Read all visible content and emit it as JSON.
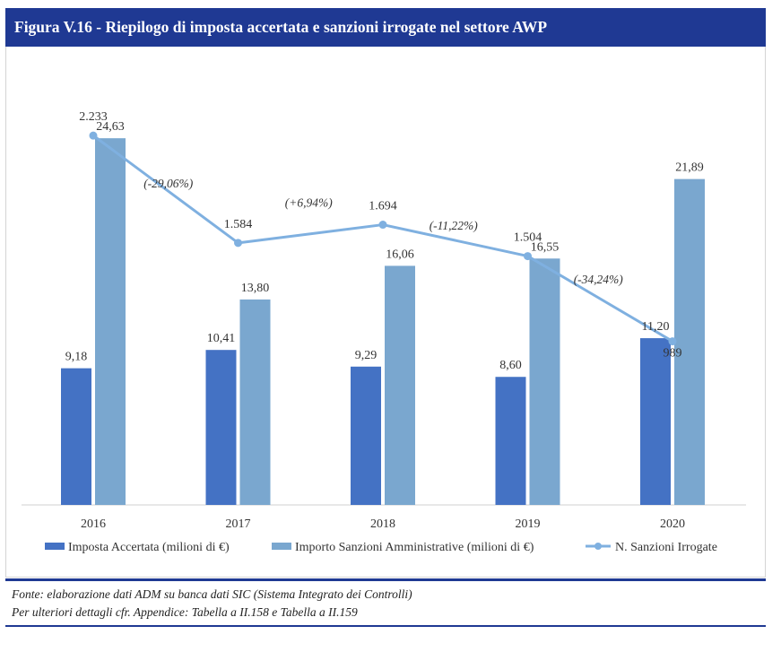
{
  "figure": {
    "title": "Figura V.16 - Riepilogo di imposta accertata e sanzioni irrogate nel settore AWP"
  },
  "colors": {
    "title_bg": "#1f3993",
    "imposta": "#4472c4",
    "importo": "#7aa7cf",
    "sanzioni": "#7fb0e0"
  },
  "chart_data": {
    "type": "bar",
    "categories": [
      "2016",
      "2017",
      "2018",
      "2019",
      "2020"
    ],
    "series": [
      {
        "name": "Imposta Accertata  (milioni di €)",
        "type": "bar",
        "values": [
          9.18,
          10.41,
          9.29,
          8.6,
          11.2
        ],
        "labels": [
          "9,18",
          "10,41",
          "9,29",
          "8,60",
          "11,20"
        ]
      },
      {
        "name": "Importo Sanzioni Amministrative (milioni di €)",
        "type": "bar",
        "values": [
          24.63,
          13.8,
          16.06,
          16.55,
          21.89
        ],
        "labels": [
          "24,63",
          "13,80",
          "16,06",
          "16,55",
          "21,89"
        ]
      },
      {
        "name": "N. Sanzioni Irrogate",
        "type": "line",
        "axis": "secondary",
        "values": [
          2233,
          1584,
          1694,
          1504,
          989
        ],
        "labels": [
          "2.233",
          "1.584",
          "1.694",
          "1.504",
          "989"
        ]
      }
    ],
    "changes": [
      "(-29,06%)",
      "(+6,94%)",
      "(-11,22%)",
      "(-34,24%)"
    ],
    "ylim": [
      0,
      30
    ],
    "y2lim": [
      0,
      2700
    ],
    "grid": false,
    "legend": "bottom"
  },
  "notes": {
    "source": "Fonte: elaborazione dati ADM su banca dati SIC (Sistema Integrato dei Controlli)",
    "details": "Per ulteriori dettagli cfr. Appendice: Tabella a II.158 e Tabella a II.159"
  }
}
